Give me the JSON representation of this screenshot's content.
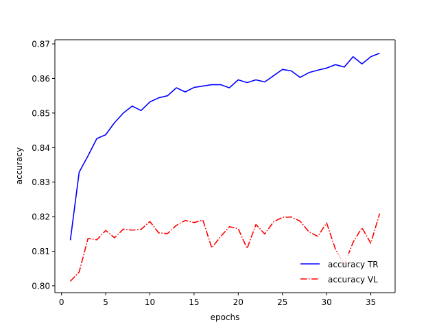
{
  "chart_data": {
    "type": "line",
    "title": "",
    "xlabel": "epochs",
    "ylabel": "accuracy",
    "xlim": [
      -0.75,
      37.75
    ],
    "ylim": [
      0.798,
      0.8712
    ],
    "xticks": [
      0,
      5,
      10,
      15,
      20,
      25,
      30,
      35
    ],
    "yticks": [
      0.8,
      0.81,
      0.82,
      0.83,
      0.84,
      0.85,
      0.86,
      0.87
    ],
    "ytick_labels": [
      "0.80",
      "0.81",
      "0.82",
      "0.83",
      "0.84",
      "0.85",
      "0.86",
      "0.87"
    ],
    "grid": false,
    "legend": "lower-right",
    "x": [
      1,
      2,
      3,
      4,
      5,
      6,
      7,
      8,
      9,
      10,
      11,
      12,
      13,
      14,
      15,
      16,
      17,
      18,
      19,
      20,
      21,
      22,
      23,
      24,
      25,
      26,
      27,
      28,
      29,
      30,
      31,
      32,
      33,
      34,
      35,
      36
    ],
    "series": [
      {
        "name": "accuracy TR",
        "color": "#0000ff",
        "linestyle": "solid",
        "values": [
          0.8132,
          0.8329,
          0.8376,
          0.8426,
          0.8437,
          0.8472,
          0.85,
          0.852,
          0.8507,
          0.8532,
          0.8544,
          0.855,
          0.8573,
          0.8561,
          0.8574,
          0.8578,
          0.8582,
          0.8582,
          0.8573,
          0.8596,
          0.8588,
          0.8596,
          0.859,
          0.8608,
          0.8626,
          0.8622,
          0.8603,
          0.8617,
          0.8624,
          0.863,
          0.864,
          0.8633,
          0.8663,
          0.8642,
          0.8663,
          0.8673
        ]
      },
      {
        "name": "accuracy VL",
        "color": "#ff0000",
        "linestyle": "dashdot",
        "values": [
          0.8013,
          0.804,
          0.8137,
          0.8133,
          0.816,
          0.8139,
          0.8164,
          0.8161,
          0.8163,
          0.8186,
          0.8153,
          0.8151,
          0.8175,
          0.8189,
          0.8183,
          0.819,
          0.811,
          0.8142,
          0.8171,
          0.8165,
          0.8108,
          0.8177,
          0.815,
          0.8185,
          0.8198,
          0.8199,
          0.8187,
          0.8156,
          0.8143,
          0.8182,
          0.8106,
          0.8061,
          0.8126,
          0.8168,
          0.8123,
          0.8209
        ]
      }
    ]
  }
}
